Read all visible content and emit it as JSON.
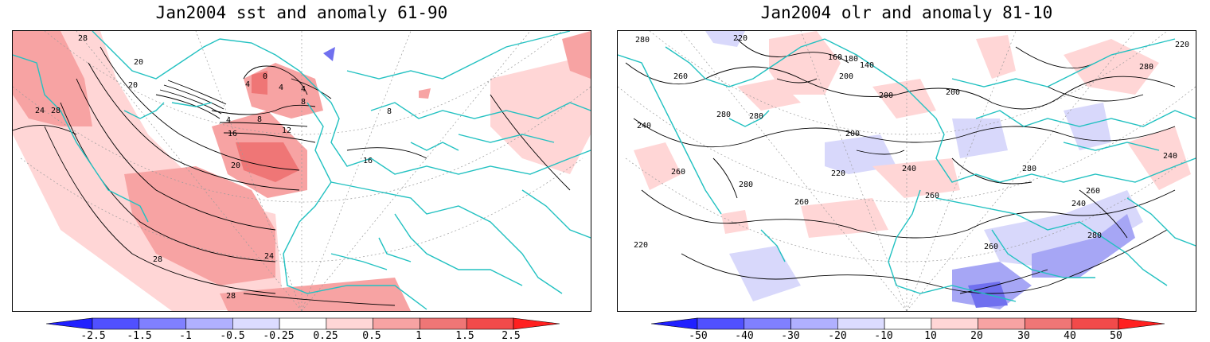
{
  "panels": [
    {
      "title": "Jan2004 sst and anomaly 61-90",
      "contour_labels": [
        "28",
        "20",
        "24",
        "20",
        "28",
        "4",
        "0",
        "4",
        "4",
        "8",
        "8",
        "4",
        "12",
        "16",
        "20",
        "24",
        "28",
        "28",
        "16",
        "8"
      ],
      "colorbar_labels": [
        "-2.5",
        "-1.5",
        "-1",
        "-0.5",
        "-0.25",
        "0.25",
        "0.5",
        "1",
        "1.5",
        "2.5"
      ]
    },
    {
      "title": "Jan2004 olr and anomaly 81-10",
      "contour_labels": [
        "280",
        "220",
        "160",
        "180",
        "140",
        "200",
        "240",
        "280",
        "260",
        "280",
        "200",
        "200",
        "200",
        "220",
        "240",
        "260",
        "260",
        "280",
        "260",
        "220",
        "240",
        "260",
        "280",
        "280",
        "220",
        "240",
        "260",
        "280"
      ],
      "colorbar_labels": [
        "-50",
        "-40",
        "-30",
        "-20",
        "-10",
        "10",
        "20",
        "30",
        "40",
        "50"
      ]
    }
  ],
  "colors": {
    "coast": "#22c1c1",
    "pos_light": "#ffd6d6",
    "pos_mid": "#f7a3a3",
    "pos_strong": "#ef7676",
    "neg_light": "#d8d8fb",
    "neg_mid": "#a6a6f5",
    "neg_strong": "#7070ef"
  },
  "colorbar_colors": [
    "#2020ff",
    "#5050ff",
    "#8080ff",
    "#b0b0ff",
    "#dcdcff",
    "#ffffff",
    "#ffd6d6",
    "#f7a3a3",
    "#ef7676",
    "#f24a4a",
    "#ff2020"
  ]
}
